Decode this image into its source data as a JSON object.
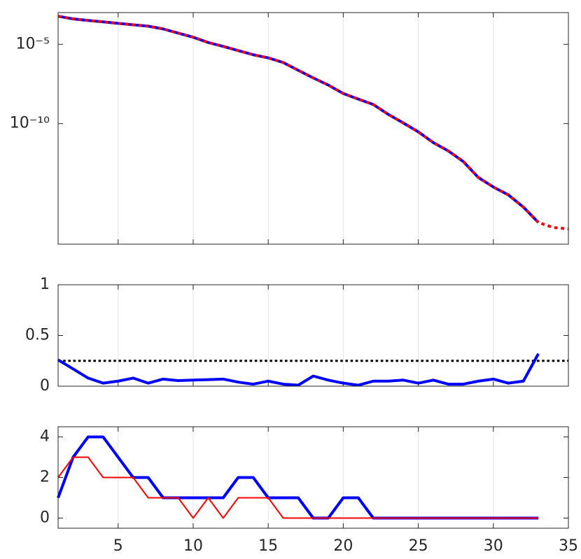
{
  "chart_data": [
    {
      "type": "line",
      "yscale": "log",
      "grid": "x",
      "x": [
        1,
        2,
        3,
        4,
        5,
        6,
        7,
        8,
        9,
        10,
        11,
        12,
        13,
        14,
        15,
        16,
        17,
        18,
        19,
        20,
        21,
        22,
        23,
        24,
        25,
        26,
        27,
        28,
        29,
        30,
        31,
        32,
        33,
        34,
        35
      ],
      "xlim": [
        1,
        35
      ],
      "ylim": [
        2.5e-18,
        0.001
      ],
      "yticks": [
        {
          "value": 1e-10,
          "label": "10⁻¹⁰"
        },
        {
          "value": 1e-05,
          "label": "10⁻⁵"
        }
      ],
      "series": [
        {
          "color": "#0000ff",
          "style": "solid",
          "linewidth": 4,
          "values": [
            0.00059,
            0.0004,
            0.00032,
            0.00026,
            0.00021,
            0.00017,
            0.00014,
            9.3e-05,
            5.1e-05,
            2.8e-05,
            1.3e-05,
            7.4e-06,
            4e-06,
            2.2e-06,
            1.4e-06,
            7.1e-07,
            2.3e-07,
            7.6e-08,
            2.7e-08,
            7.9e-09,
            3.5e-09,
            1.6e-09,
            3.8e-10,
            1.1e-10,
            3e-11,
            6.3e-12,
            1.9e-12,
            4e-13,
            4e-14,
            1e-14,
            3.2e-15,
            5.4e-16,
            5.8e-17,
            null,
            null
          ]
        },
        {
          "color": "#ff0000",
          "style": "dotted",
          "linewidth": 4,
          "values": [
            0.00059,
            0.0004,
            0.00032,
            0.00026,
            0.00021,
            0.00017,
            0.00014,
            9.3e-05,
            5.1e-05,
            2.8e-05,
            1.3e-05,
            7.4e-06,
            4e-06,
            2.2e-06,
            1.4e-06,
            7.1e-07,
            2.3e-07,
            7.6e-08,
            2.7e-08,
            7.9e-09,
            3.5e-09,
            1.6e-09,
            3.8e-10,
            1.1e-10,
            3e-11,
            6.3e-12,
            1.9e-12,
            4e-13,
            4e-14,
            1e-14,
            3.2e-15,
            5.4e-16,
            5.8e-17,
            2.8e-17,
            2.3e-17
          ]
        }
      ]
    },
    {
      "type": "line",
      "grid": "x",
      "x": [
        1,
        2,
        3,
        4,
        5,
        6,
        7,
        8,
        9,
        10,
        11,
        12,
        13,
        14,
        15,
        16,
        17,
        18,
        19,
        20,
        21,
        22,
        23,
        24,
        25,
        26,
        27,
        28,
        29,
        30,
        31,
        32,
        33
      ],
      "xlim": [
        1,
        35
      ],
      "ylim": [
        0,
        1
      ],
      "yticks": [
        0,
        0.5,
        1
      ],
      "hline": {
        "value": 0.25,
        "color": "#000000",
        "style": "dotted",
        "linewidth": 3
      },
      "series": [
        {
          "color": "#0000ff",
          "style": "solid",
          "linewidth": 4,
          "values": [
            0.26,
            0.17,
            0.08,
            0.03,
            0.05,
            0.08,
            0.03,
            0.07,
            0.055,
            0.06,
            0.065,
            0.07,
            0.04,
            0.02,
            0.05,
            0.02,
            0.01,
            0.1,
            0.06,
            0.03,
            0.01,
            0.05,
            0.05,
            0.06,
            0.03,
            0.06,
            0.02,
            0.02,
            0.05,
            0.07,
            0.03,
            0.05,
            0.32
          ]
        }
      ]
    },
    {
      "type": "line",
      "grid": "x",
      "x": [
        1,
        2,
        3,
        4,
        5,
        6,
        7,
        8,
        9,
        10,
        11,
        12,
        13,
        14,
        15,
        16,
        17,
        18,
        19,
        20,
        21,
        22,
        23,
        24,
        25,
        26,
        27,
        28,
        29,
        30,
        31,
        32,
        33
      ],
      "xlim": [
        1,
        35
      ],
      "xticks": [
        5,
        10,
        15,
        20,
        25,
        30,
        35
      ],
      "ylim": [
        -0.5,
        4.5
      ],
      "yticks": [
        0,
        2,
        4
      ],
      "series": [
        {
          "color": "#0000ff",
          "style": "solid",
          "linewidth": 4,
          "values": [
            1,
            3,
            4,
            4,
            3,
            2,
            2,
            1,
            1,
            1,
            1,
            1,
            2,
            2,
            1,
            1,
            1,
            0,
            0,
            1,
            1,
            0,
            0,
            0,
            0,
            0,
            0,
            0,
            0,
            0,
            0,
            0,
            0
          ]
        },
        {
          "color": "#ff0000",
          "style": "solid",
          "linewidth": 2,
          "values": [
            2,
            3,
            3,
            2,
            2,
            2,
            1,
            1,
            1,
            0,
            1,
            0,
            1,
            1,
            1,
            0,
            0,
            0,
            0,
            0,
            0,
            0,
            0,
            0,
            0,
            0,
            0,
            0,
            0,
            0,
            0,
            0,
            0
          ]
        }
      ]
    }
  ]
}
